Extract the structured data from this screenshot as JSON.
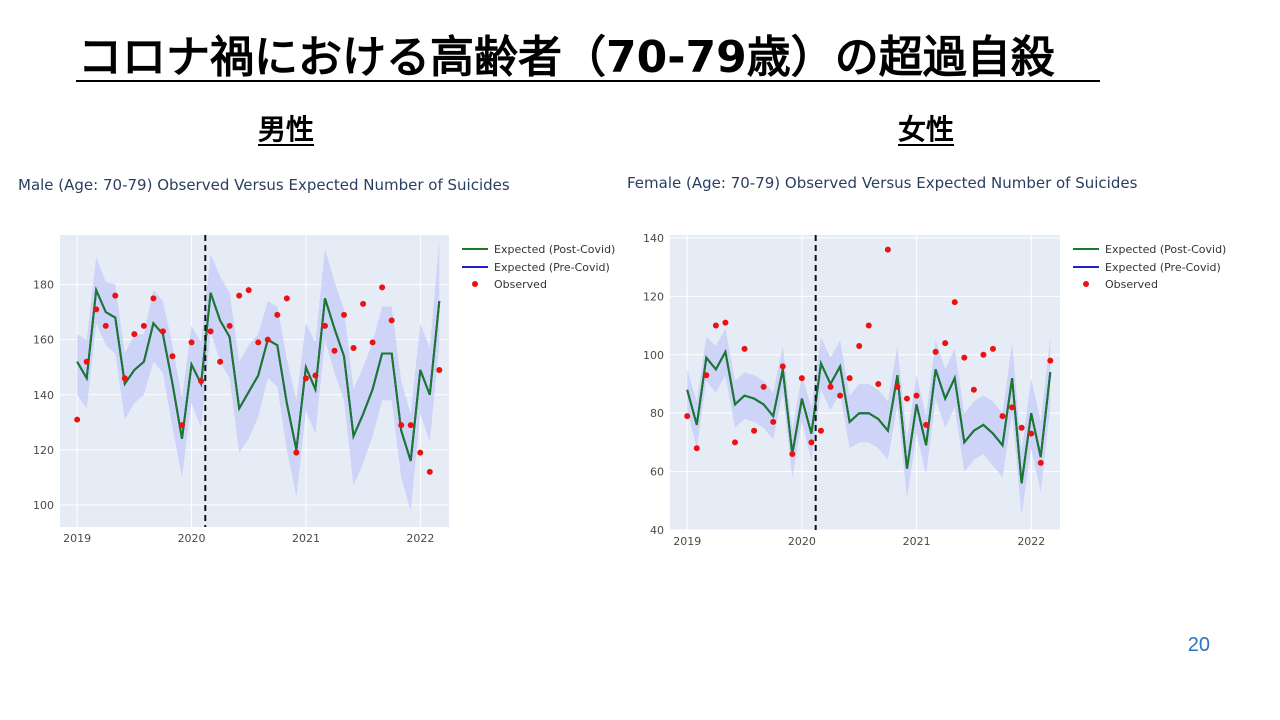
{
  "slide": {
    "title": "コロナ禍における高齢者（70-79歳）の超過自殺",
    "male_heading": "男性",
    "female_heading": "女性",
    "page_number": "20"
  },
  "legend": {
    "post": "Expected (Post-Covid)",
    "pre": "Expected (Pre-Covid)",
    "obs": "Observed"
  },
  "colors": {
    "post": "#1a7a2a",
    "pre": "#1f1fd0",
    "obs": "#ee1111",
    "band": "#c9d0f7",
    "plot_bg": "#e5ecf6",
    "grid": "#ffffff",
    "axis_text": "#4a4a4a",
    "title_text": "#2a3f5f"
  },
  "chart_data": [
    {
      "type": "line",
      "title": "Male (Age: 70-79) Observed Versus Expected Number of Suicides",
      "xlabel": "",
      "ylabel": "",
      "x_range": [
        2018.85,
        2022.25
      ],
      "ylim": [
        92,
        198
      ],
      "x_ticks": [
        2019,
        2020,
        2021,
        2022
      ],
      "y_ticks": [
        100,
        120,
        140,
        160,
        180
      ],
      "covid_line_x": 2020.12,
      "x_start": 2019.0,
      "x_step": 0.0833,
      "series": [
        {
          "name": "Expected (Post-Covid)",
          "values": [
            152,
            146,
            178,
            170,
            168,
            144,
            149,
            152,
            166,
            162,
            144,
            124,
            151,
            144,
            177,
            167,
            161,
            135,
            141,
            147,
            160,
            158,
            137,
            120,
            150,
            142,
            175,
            164,
            154,
            125,
            133,
            142,
            155,
            155,
            127,
            116,
            149,
            140,
            174
          ]
        },
        {
          "name": "Observed",
          "values": [
            131,
            152,
            171,
            165,
            176,
            146,
            162,
            165,
            175,
            163,
            154,
            129,
            159,
            145,
            163,
            152,
            165,
            176,
            178,
            159,
            160,
            169,
            175,
            119,
            146,
            147,
            165,
            156,
            169,
            157,
            173,
            159,
            179,
            167,
            129,
            129,
            119,
            112,
            149
          ]
        }
      ],
      "band_upper": [
        162,
        160,
        190,
        181,
        180,
        155,
        162,
        162,
        178,
        174,
        158,
        139,
        165,
        159,
        191,
        183,
        177,
        152,
        158,
        162,
        174,
        172,
        153,
        138,
        166,
        159,
        193,
        181,
        171,
        142,
        150,
        159,
        172,
        172,
        145,
        133,
        166,
        157,
        196
      ],
      "band_lower": [
        140,
        135,
        166,
        158,
        155,
        131,
        137,
        140,
        152,
        148,
        128,
        110,
        137,
        128,
        163,
        152,
        146,
        119,
        124,
        132,
        146,
        143,
        120,
        103,
        134,
        126,
        160,
        148,
        138,
        107,
        115,
        125,
        138,
        138,
        110,
        98,
        133,
        123,
        158
      ]
    },
    {
      "type": "line",
      "title": "Female (Age: 70-79) Observed Versus Expected Number of Suicides",
      "xlabel": "",
      "ylabel": "",
      "x_range": [
        2018.85,
        2022.25
      ],
      "ylim": [
        40,
        141
      ],
      "x_ticks": [
        2019,
        2020,
        2021,
        2022
      ],
      "y_ticks": [
        40,
        60,
        80,
        100,
        120,
        140
      ],
      "covid_line_x": 2020.12,
      "x_start": 2019.0,
      "x_step": 0.0833,
      "series": [
        {
          "name": "Expected (Post-Covid)",
          "values": [
            88,
            76,
            99,
            95,
            101,
            83,
            86,
            85,
            83,
            79,
            95,
            66,
            85,
            73,
            97,
            90,
            96,
            77,
            80,
            80,
            78,
            74,
            93,
            61,
            83,
            69,
            95,
            85,
            92,
            70,
            74,
            76,
            73,
            69,
            92,
            56,
            80,
            65,
            94
          ]
        },
        {
          "name": "Observed",
          "values": [
            79,
            68,
            93,
            110,
            111,
            70,
            102,
            74,
            89,
            77,
            96,
            66,
            92,
            70,
            74,
            89,
            86,
            92,
            103,
            110,
            90,
            136,
            89,
            85,
            86,
            76,
            101,
            104,
            118,
            99,
            88,
            100,
            102,
            79,
            82,
            75,
            73,
            63,
            98
          ]
        }
      ],
      "band_upper": [
        95,
        84,
        106,
        103,
        109,
        91,
        94,
        93,
        91,
        87,
        103,
        74,
        93,
        82,
        106,
        99,
        105,
        86,
        90,
        90,
        88,
        84,
        103,
        71,
        93,
        79,
        105,
        95,
        102,
        80,
        84,
        86,
        84,
        80,
        104,
        67,
        92,
        77,
        106
      ],
      "band_lower": [
        81,
        68,
        91,
        87,
        93,
        75,
        78,
        77,
        75,
        71,
        87,
        58,
        77,
        64,
        88,
        81,
        87,
        68,
        70,
        70,
        68,
        64,
        83,
        51,
        73,
        59,
        85,
        75,
        82,
        60,
        64,
        66,
        62,
        58,
        80,
        45,
        68,
        53,
        82
      ]
    }
  ]
}
